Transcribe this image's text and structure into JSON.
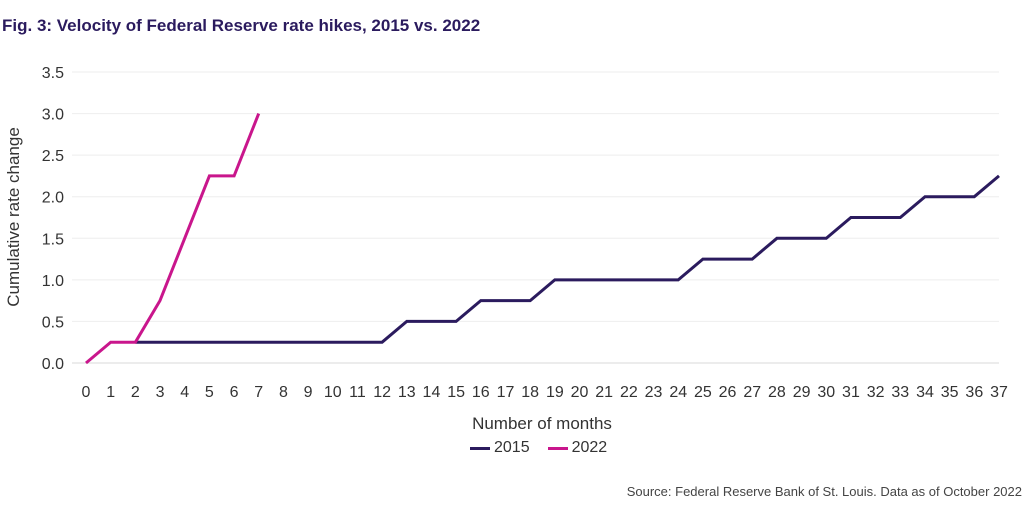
{
  "title": "Fig. 3: Velocity of Federal Reserve rate hikes, 2015 vs. 2022",
  "source": "Source: Federal Reserve Bank of St. Louis. Data as of October 2022",
  "chart_data": {
    "type": "line",
    "title": "Fig. 3: Velocity of Federal Reserve rate hikes, 2015 vs. 2022",
    "xlabel": "Number of months",
    "ylabel": "Cumulative rate change",
    "xlim": [
      0,
      37
    ],
    "ylim": [
      0,
      3.5
    ],
    "x_ticks": [
      0,
      1,
      2,
      3,
      4,
      5,
      6,
      7,
      8,
      9,
      10,
      11,
      12,
      13,
      14,
      15,
      16,
      17,
      18,
      19,
      20,
      21,
      22,
      23,
      24,
      25,
      26,
      27,
      28,
      29,
      30,
      31,
      32,
      33,
      34,
      35,
      36,
      37
    ],
    "y_ticks": [
      "0.0",
      "0.5",
      "1.0",
      "1.5",
      "2.0",
      "2.5",
      "3.0",
      "3.5"
    ],
    "grid": "horizontal",
    "legend_position": "bottom",
    "series": [
      {
        "name": "2015",
        "color": "#2b1b5e",
        "x": [
          2,
          3,
          4,
          5,
          6,
          7,
          8,
          9,
          10,
          11,
          12,
          13,
          14,
          15,
          16,
          17,
          18,
          19,
          20,
          21,
          22,
          23,
          24,
          25,
          26,
          27,
          28,
          29,
          30,
          31,
          32,
          33,
          34,
          35,
          36,
          37
        ],
        "values": [
          0.25,
          0.25,
          0.25,
          0.25,
          0.25,
          0.25,
          0.25,
          0.25,
          0.25,
          0.25,
          0.25,
          0.5,
          0.5,
          0.5,
          0.75,
          0.75,
          0.75,
          1.0,
          1.0,
          1.0,
          1.0,
          1.0,
          1.0,
          1.25,
          1.25,
          1.25,
          1.5,
          1.5,
          1.5,
          1.75,
          1.75,
          1.75,
          2.0,
          2.0,
          2.0,
          2.25
        ]
      },
      {
        "name": "2022",
        "color": "#c9168c",
        "x": [
          0,
          1,
          2,
          3,
          4,
          5,
          6,
          7
        ],
        "values": [
          0,
          0.25,
          0.25,
          0.75,
          1.5,
          2.25,
          2.25,
          3.0
        ]
      }
    ]
  }
}
